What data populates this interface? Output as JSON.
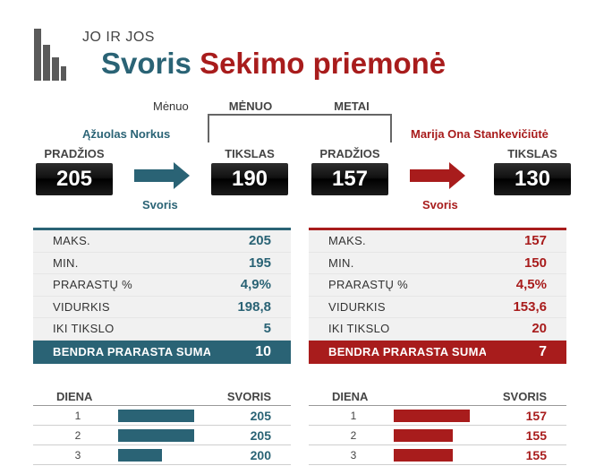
{
  "header": {
    "subtitle": "JO IR JOS",
    "title_part1": "Svoris",
    "title_part2": "Sekimo priemonė"
  },
  "nav": {
    "menu_label": "Mėnuo",
    "tabs": [
      {
        "label": "MĖNUO"
      },
      {
        "label": "METAI"
      }
    ]
  },
  "colors": {
    "teal": "#2a6375",
    "red": "#a81c1c"
  },
  "person1": {
    "name": "Ąžuolas Norkus",
    "start_label": "PRADŽIOS",
    "start_value": "205",
    "arrow_label": "Svoris",
    "goal_label": "TIKSLAS",
    "goal_value": "190",
    "stats": [
      {
        "label": "MAKS.",
        "value": "205"
      },
      {
        "label": "MIN.",
        "value": "195"
      },
      {
        "label": "PRARASTŲ %",
        "value": "4,9%"
      },
      {
        "label": "VIDURKIS",
        "value": "198,8"
      },
      {
        "label": "IKI TIKSLO",
        "value": "5"
      }
    ],
    "total_label": "BENDRA PRARASTA SUMA",
    "total_value": "10",
    "table": {
      "col_day": "DIENA",
      "col_weight": "SVORIS",
      "rows": [
        {
          "day": "1",
          "weight": "205",
          "bar_fraction": 1.0
        },
        {
          "day": "2",
          "weight": "205",
          "bar_fraction": 1.0
        },
        {
          "day": "3",
          "weight": "200",
          "bar_fraction": 0.58
        }
      ]
    }
  },
  "person2": {
    "name": "Marija Ona Stankevičiūtė",
    "start_label": "PRADŽIOS",
    "start_value": "157",
    "arrow_label": "Svoris",
    "goal_label": "TIKSLAS",
    "goal_value": "130",
    "stats": [
      {
        "label": "MAKS.",
        "value": "157"
      },
      {
        "label": "MIN.",
        "value": "150"
      },
      {
        "label": "PRARASTŲ %",
        "value": "4,5%"
      },
      {
        "label": "VIDURKIS",
        "value": "153,6"
      },
      {
        "label": "IKI TIKSLO",
        "value": "20"
      }
    ],
    "total_label": "BENDRA PRARASTA SUMA",
    "total_value": "7",
    "table": {
      "col_day": "DIENA",
      "col_weight": "SVORIS",
      "rows": [
        {
          "day": "1",
          "weight": "157",
          "bar_fraction": 1.0
        },
        {
          "day": "2",
          "weight": "155",
          "bar_fraction": 0.78
        },
        {
          "day": "3",
          "weight": "155",
          "bar_fraction": 0.78
        }
      ]
    }
  }
}
